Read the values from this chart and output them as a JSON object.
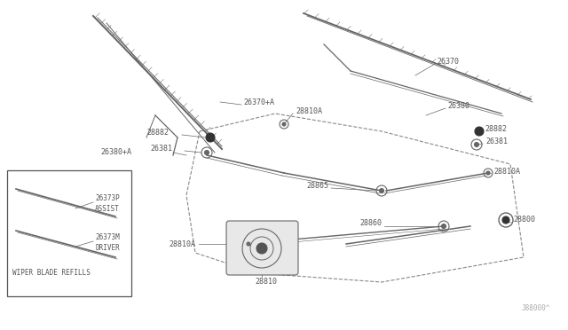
{
  "background_color": "#ffffff",
  "line_color": "#666666",
  "text_color": "#555555",
  "part_number": "J88000^",
  "figsize": [
    6.4,
    3.72
  ],
  "dpi": 100,
  "xlim": [
    0,
    640
  ],
  "ylim": [
    0,
    372
  ]
}
